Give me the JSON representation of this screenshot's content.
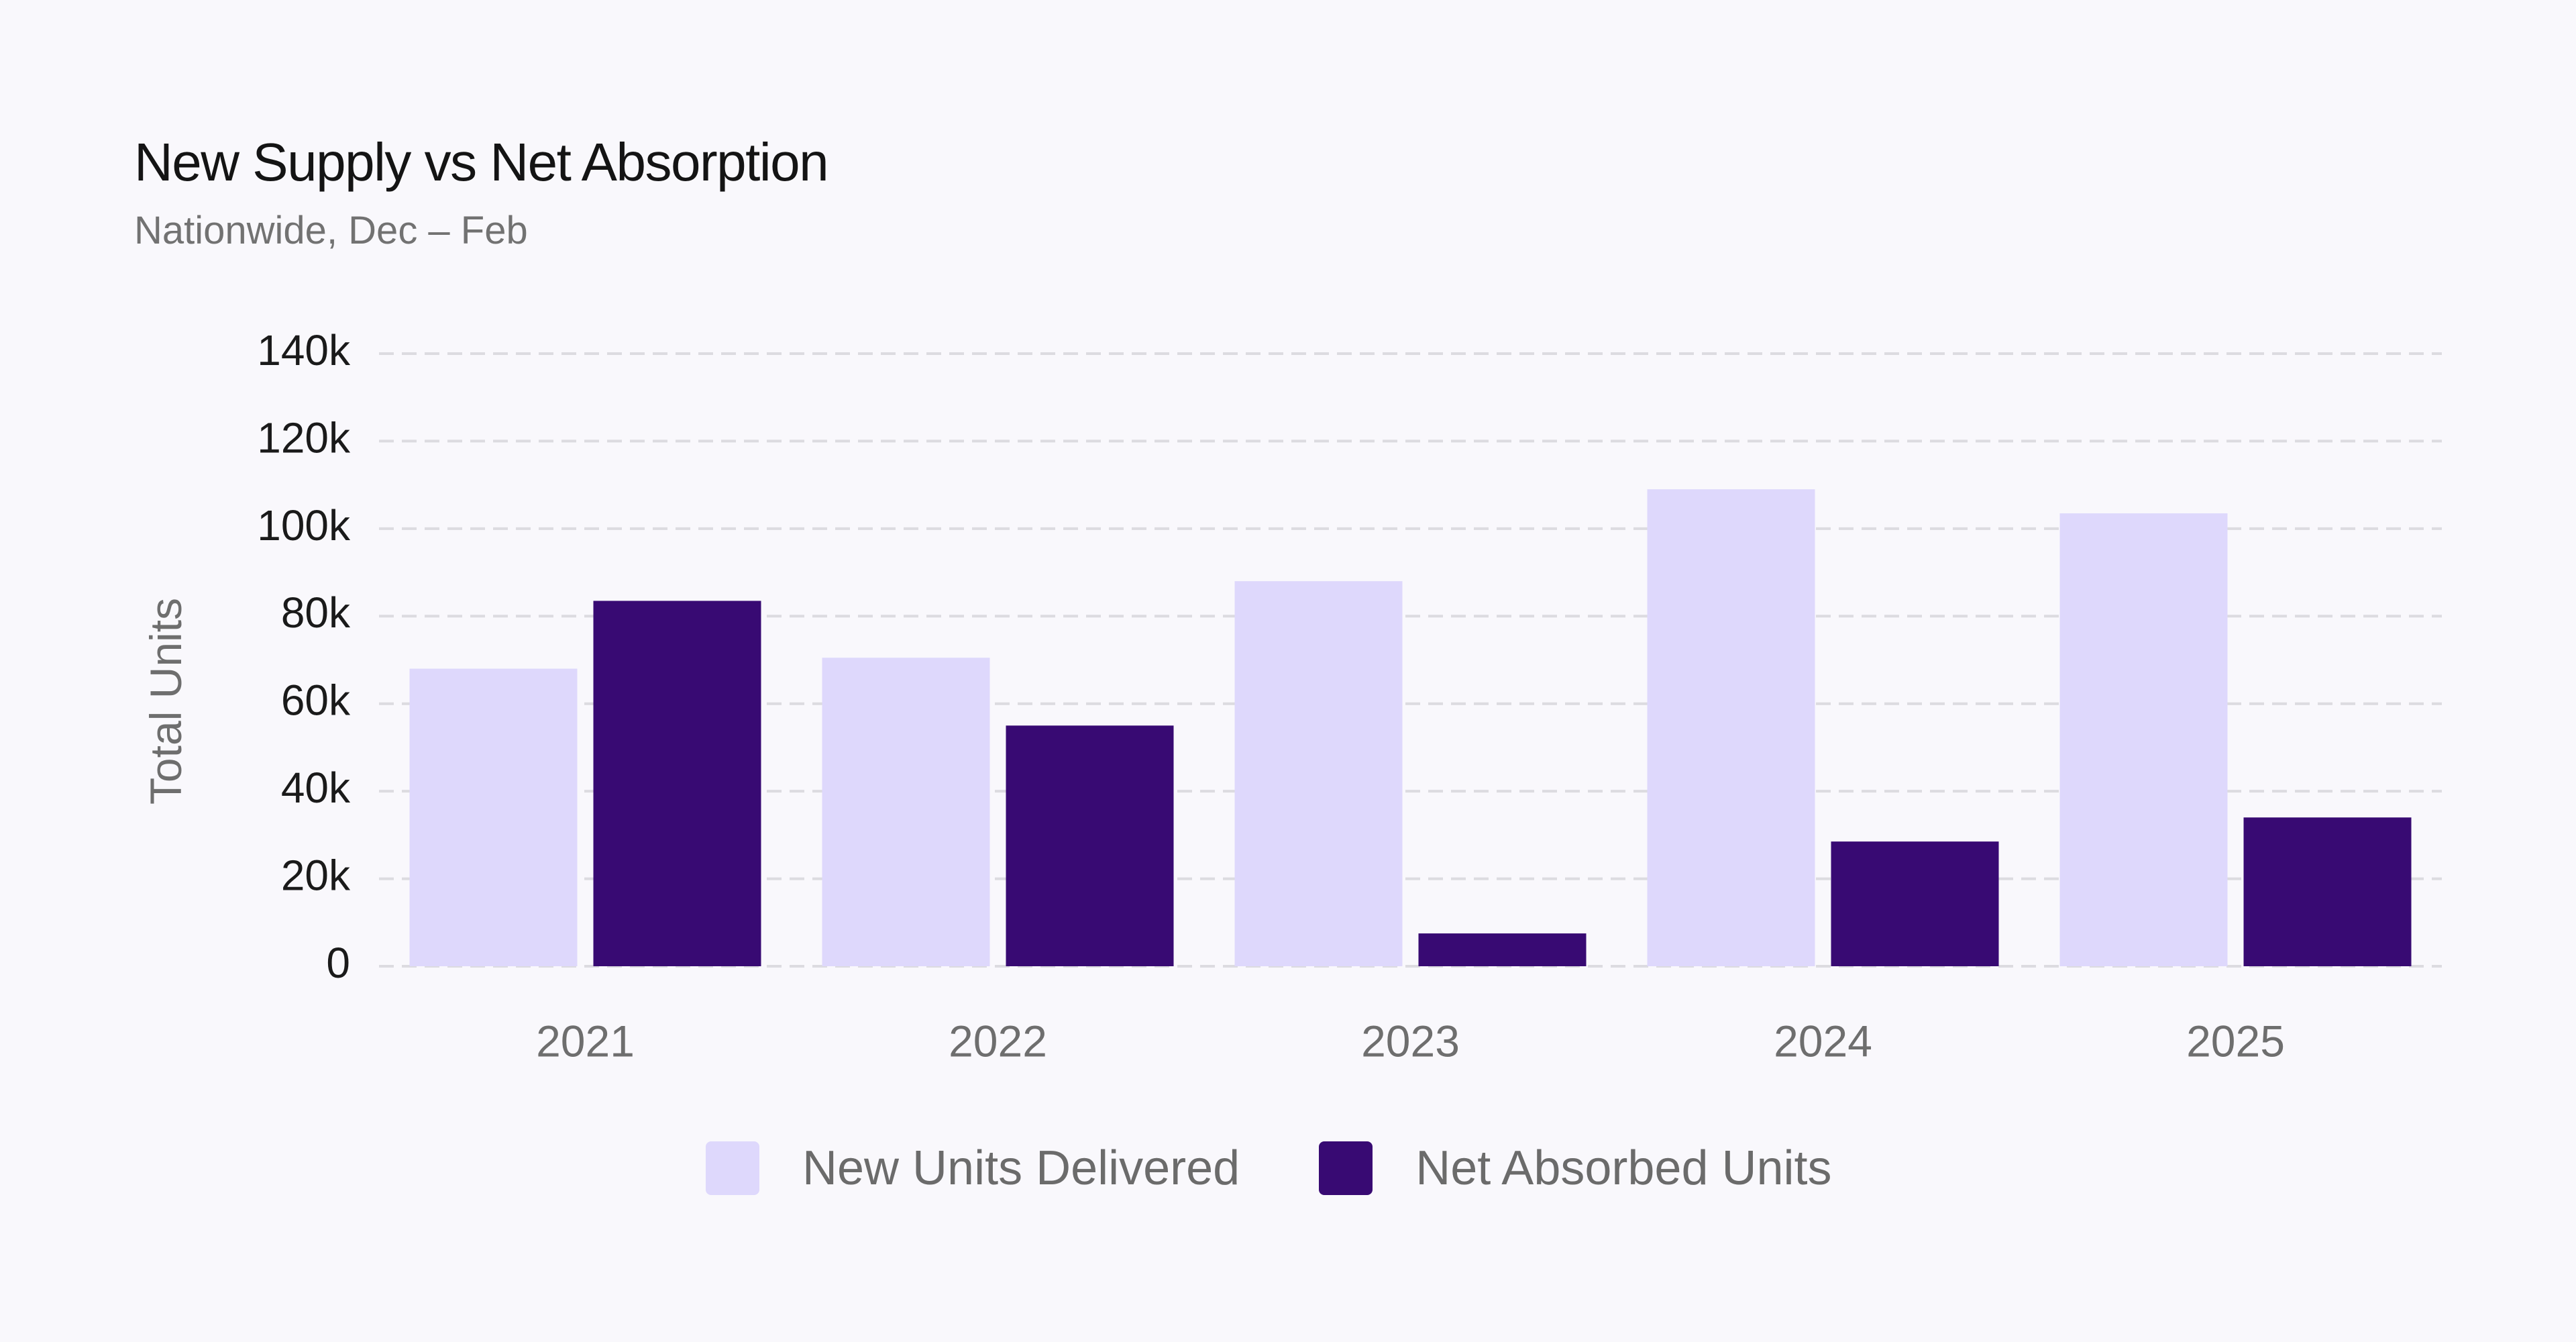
{
  "chart_data": {
    "type": "bar",
    "title": "New Supply vs Net Absorption",
    "subtitle": "Nationwide, Dec – Feb",
    "xlabel": "",
    "ylabel": "Total Units",
    "categories": [
      "2021",
      "2022",
      "2023",
      "2024",
      "2025"
    ],
    "series": [
      {
        "name": "New Units Delivered",
        "color": "#ded8fc",
        "values": [
          68000,
          70500,
          88000,
          109000,
          103500
        ]
      },
      {
        "name": "Net Absorbed Units",
        "color": "#380a73",
        "values": [
          83500,
          55000,
          7500,
          28500,
          34000
        ]
      }
    ],
    "ylim": [
      0,
      140000
    ],
    "yticks": [
      0,
      20000,
      40000,
      60000,
      80000,
      100000,
      120000,
      140000
    ],
    "ytick_labels": [
      "0",
      "20k",
      "40k",
      "60k",
      "80k",
      "100k",
      "120k",
      "140k"
    ],
    "grid": true,
    "legend_position": "bottom-center"
  }
}
